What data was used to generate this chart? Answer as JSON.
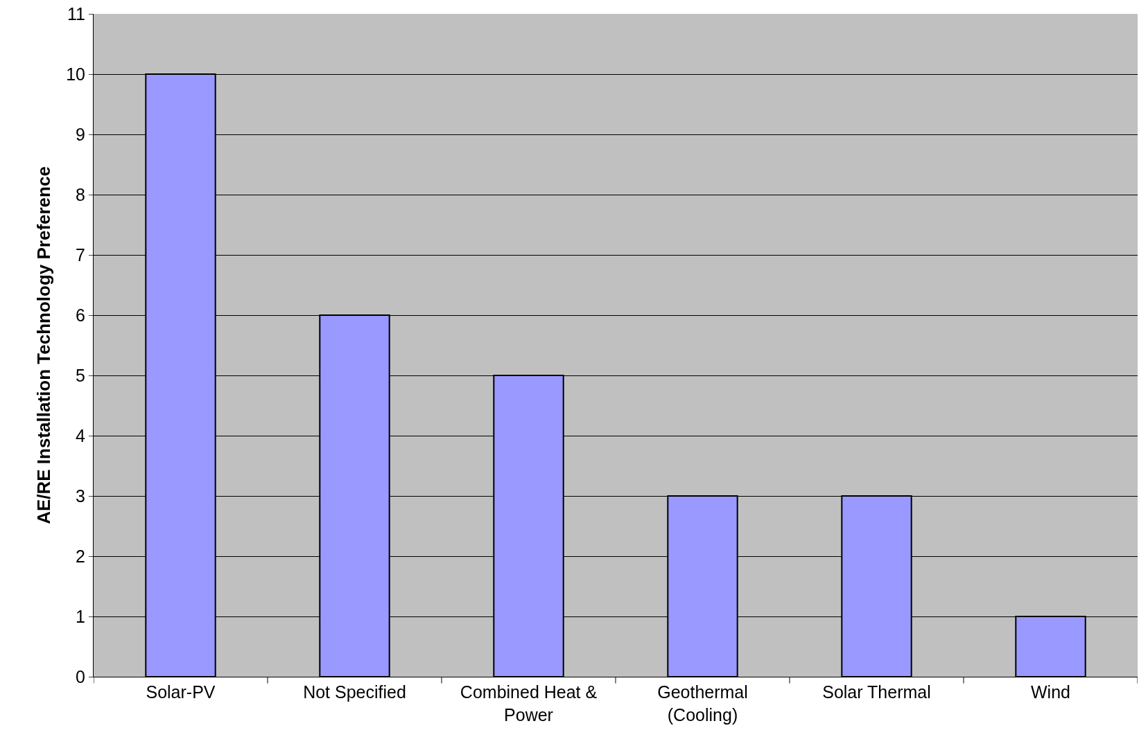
{
  "chart_data": {
    "type": "bar",
    "ylabel": "AE/RE Installation Technology Preference",
    "categories": [
      "Solar-PV",
      "Not Specified",
      "Combined Heat & Power",
      "Geothermal (Cooling)",
      "Solar Thermal",
      "Wind"
    ],
    "values": [
      10,
      6,
      5,
      3,
      3,
      1
    ],
    "color": "#9999ff",
    "ylim": [
      0,
      11
    ],
    "yticks": [
      0,
      1,
      2,
      3,
      4,
      5,
      6,
      7,
      8,
      9,
      10,
      11
    ],
    "grid": "y"
  }
}
